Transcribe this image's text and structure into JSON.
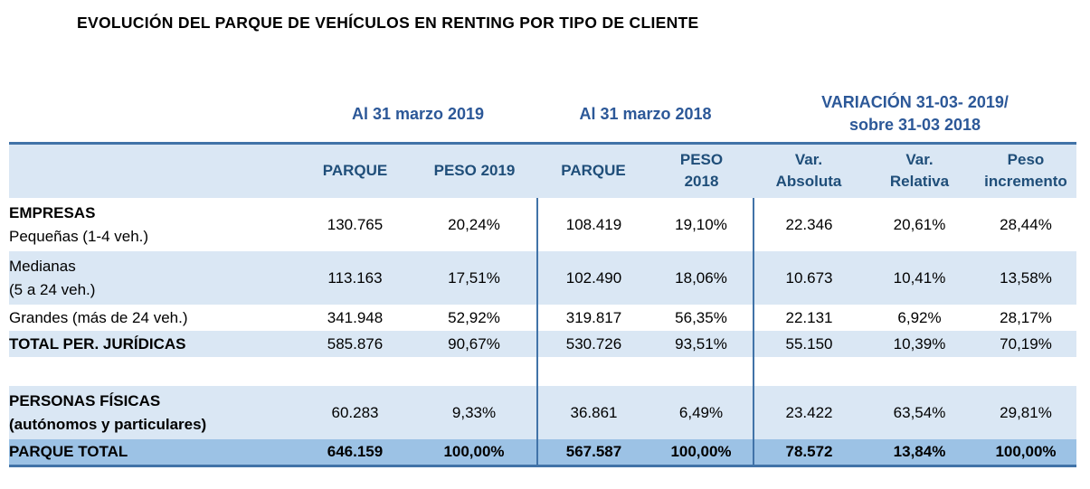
{
  "title": "EVOLUCIÓN DEL PARQUE DE VEHÍCULOS EN RENTING POR TIPO DE CLIENTE",
  "colors": {
    "light_blue_row": "#DAE7F4",
    "total_row": "#9CC2E5",
    "border_blue": "#4173A8",
    "column_header_text": "#1F4E79",
    "group_header_text": "#2C5898"
  },
  "table": {
    "group_headers": [
      {
        "label": "Al 31 marzo 2019",
        "span": 2
      },
      {
        "label": "Al 31 marzo 2018",
        "span": 2
      },
      {
        "label": "VARIACIÓN 31-03- 2019/\nsobre 31-03 2018",
        "span": 3
      }
    ],
    "columns": [
      "",
      "PARQUE",
      "PESO 2019",
      "PARQUE",
      "PESO\n2018",
      "Var.\nAbsoluta",
      "Var.\nRelativa",
      "Peso\nincremento"
    ],
    "rows": [
      {
        "label_lines": [
          {
            "text": "EMPRESAS",
            "bold": true
          },
          {
            "text": "Pequeñas (1-4 veh.)",
            "bold": false
          }
        ],
        "values": [
          "130.765",
          "20,24%",
          "108.419",
          "19,10%",
          "22.346",
          "20,61%",
          "28,44%"
        ],
        "style": "white"
      },
      {
        "label_lines": [
          {
            "text": "Medianas",
            "bold": false
          },
          {
            "text": "(5 a 24 veh.)",
            "bold": false
          }
        ],
        "values": [
          "113.163",
          "17,51%",
          "102.490",
          "18,06%",
          "10.673",
          "10,41%",
          "13,58%"
        ],
        "style": "alt"
      },
      {
        "label_lines": [
          {
            "text": "Grandes (más de 24 veh.)",
            "bold": false
          }
        ],
        "values": [
          "341.948",
          "52,92%",
          "319.817",
          "56,35%",
          "22.131",
          "6,92%",
          "28,17%"
        ],
        "style": "white"
      },
      {
        "label_lines": [
          {
            "text": "TOTAL PER. JURÍDICAS",
            "bold": true
          }
        ],
        "values": [
          "585.876",
          "90,67%",
          "530.726",
          "93,51%",
          "55.150",
          "10,39%",
          "70,19%"
        ],
        "style": "alt"
      },
      {
        "label_lines": [],
        "values": [
          "",
          "",
          "",
          "",
          "",
          "",
          ""
        ],
        "style": "white",
        "spacer": true
      },
      {
        "label_lines": [
          {
            "text": "PERSONAS FÍSICAS",
            "bold": true
          },
          {
            "text": "(autónomos y particulares)",
            "bold": true
          }
        ],
        "values": [
          "60.283",
          "9,33%",
          "36.861",
          "6,49%",
          "23.422",
          "63,54%",
          "29,81%"
        ],
        "style": "alt"
      },
      {
        "label_lines": [
          {
            "text": "PARQUE TOTAL",
            "bold": true
          }
        ],
        "values": [
          "646.159",
          "100,00%",
          "567.587",
          "100,00%",
          "78.572",
          "13,84%",
          "100,00%"
        ],
        "style": "total"
      }
    ]
  }
}
